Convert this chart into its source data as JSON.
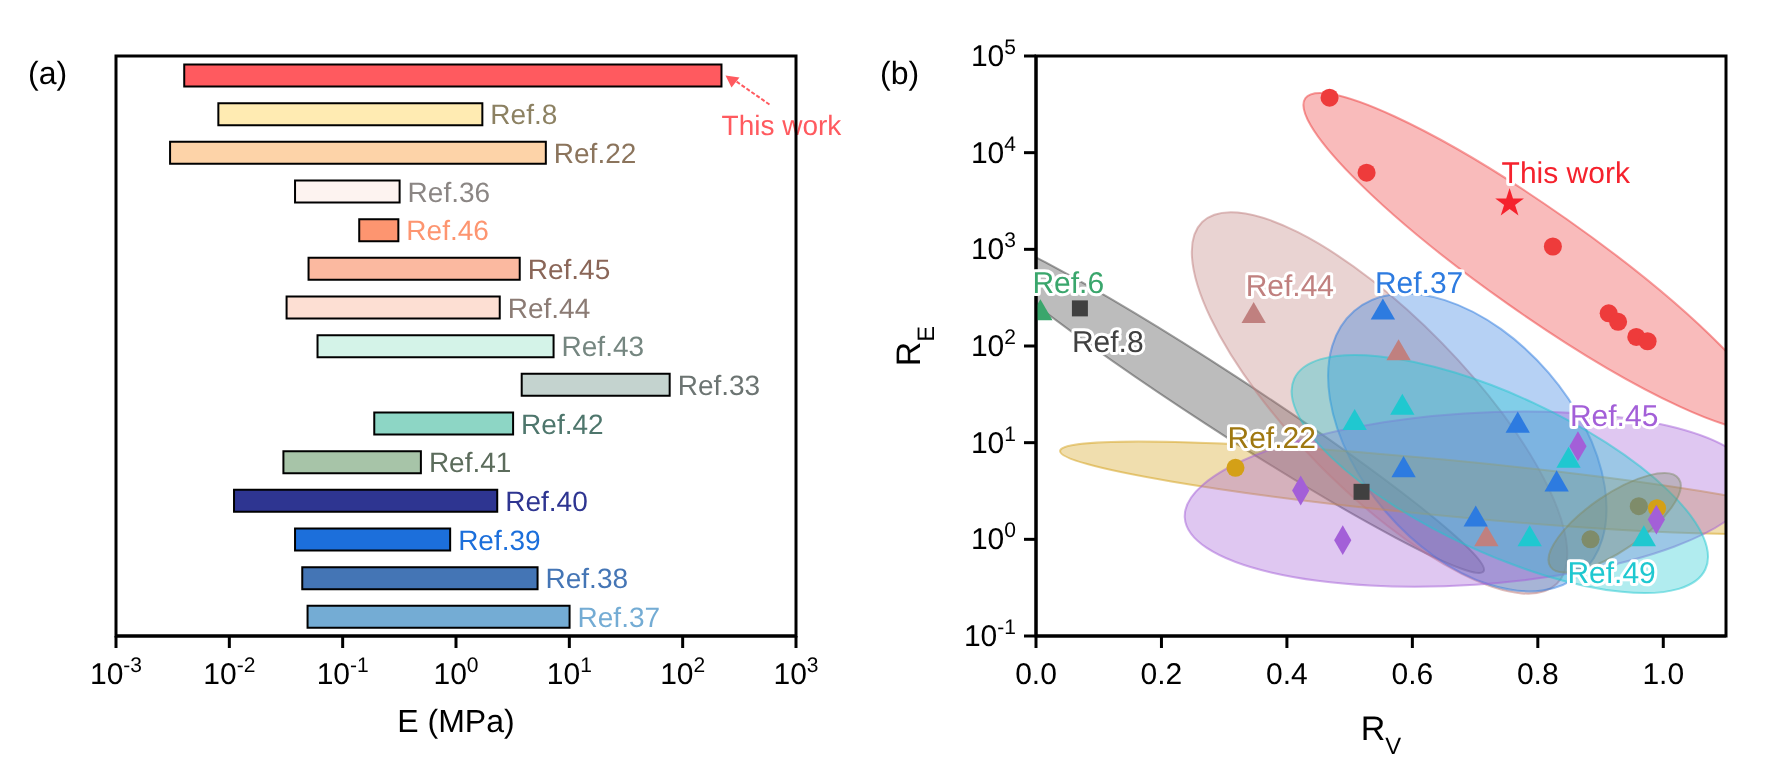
{
  "chart_data": [
    {
      "type": "bar",
      "title": "(a)",
      "orientation": "horizontal",
      "log": "x",
      "xlabel": "E (MPa)",
      "tick_labels": "x",
      "legend": false,
      "grid": false,
      "categories": [
        "This work",
        "Ref.8",
        "Ref.22",
        "Ref.36",
        "Ref.46",
        "Ref.45",
        "Ref.44",
        "Ref.43",
        "Ref.33",
        "Ref.42",
        "Ref.41",
        "Ref.40",
        "Ref.39",
        "Ref.38",
        "Ref.37"
      ],
      "base": [
        0.004,
        0.008,
        0.003,
        0.038,
        0.14,
        0.05,
        0.032,
        0.06,
        3.8,
        0.19,
        0.03,
        0.011,
        0.038,
        0.044,
        0.049
      ],
      "values": [
        220,
        1.7,
        6.2,
        0.28,
        0.17,
        3.6,
        2.4,
        7.2,
        73,
        3.0,
        0.46,
        2.3,
        0.85,
        5.2,
        10
      ],
      "colors": [
        "#ff5a5f",
        "#ffebb2",
        "#fdd3a8",
        "#fdf3f0",
        "#fd9570",
        "#fbb9a0",
        "#fddfd3",
        "#d4f3e8",
        "#c4d3cf",
        "#8dd6c5",
        "#a7c4a8",
        "#2e3591",
        "#1c6fdb",
        "#4475b5",
        "#74acd4"
      ],
      "xlim": [
        0.001,
        1000
      ],
      "xticks": [
        {
          "value": 0.001,
          "label": "10$^{-3}$"
        },
        {
          "value": 0.01,
          "label": "10$^{-2}$"
        },
        {
          "value": 0.1,
          "label": "10$^{-1}$"
        },
        {
          "value": 1,
          "label": "10$^{0}$"
        },
        {
          "value": 10,
          "label": "10$^{1}$"
        },
        {
          "value": 100,
          "label": "10$^{2}$"
        },
        {
          "value": 1000,
          "label": "10$^{3}$"
        }
      ]
    },
    {
      "type": "scatter",
      "title": "(b)",
      "log": true,
      "xlabel": "R$_{V}$",
      "ylabel": "R$_{E}$",
      "legend": false,
      "grid": false,
      "xlim": [
        0,
        1.1
      ],
      "xticks": [
        {
          "value": 0,
          "label": "0.0"
        },
        {
          "value": 0.2,
          "label": "0.2"
        },
        {
          "value": 0.4,
          "label": "0.4"
        },
        {
          "value": 0.6,
          "label": "0.6"
        },
        {
          "value": 0.8,
          "label": "0.8"
        },
        {
          "value": 1,
          "label": "1.0"
        }
      ],
      "ylim": [
        0.1,
        100000
      ],
      "yticks": [
        {
          "value": 0.1,
          "label": "10$^{-1}$"
        },
        {
          "value": 1,
          "label": "10$^{0}$"
        },
        {
          "value": 10,
          "label": "10$^{1}$"
        },
        {
          "value": 100,
          "label": "10$^{2}$"
        },
        {
          "value": 1000,
          "label": "10$^{3}$"
        },
        {
          "value": 10000,
          "label": "10$^{4}$"
        },
        {
          "value": 100000,
          "label": "10$^{5}$"
        }
      ],
      "series": [
        {
          "name": "This work",
          "color": "#f5222d",
          "marker": "star",
          "x": [
            0.755
          ],
          "values": [
            3000
          ]
        },
        {
          "color": "#ee3b3b",
          "marker": "circle",
          "x": [
            0.468,
            0.527,
            0.824,
            0.913,
            0.928,
            0.957,
            0.975
          ],
          "values": [
            37000,
            6200,
            1070,
            218,
            178,
            124,
            112
          ]
        },
        {
          "name": "Ref.6",
          "color": "#3aa66c",
          "marker": "triangle",
          "x": [
            0.007
          ],
          "values": [
            218
          ]
        },
        {
          "name": "Ref.8",
          "color": "#404040",
          "marker": "square",
          "x": [
            0.07,
            0.519
          ],
          "values": [
            245,
            3.1
          ]
        },
        {
          "name": "Ref.44",
          "color": "#c0807f",
          "marker": "triangle",
          "x": [
            0.347,
            0.578,
            0.718
          ],
          "values": [
            204,
            84,
            1.0
          ]
        },
        {
          "name": "Ref.37",
          "color": "#2d7be0",
          "marker": "triangle",
          "x": [
            0.553,
            0.586,
            0.701,
            0.83,
            0.768
          ],
          "values": [
            222,
            5.2,
            1.6,
            3.7,
            15
          ]
        },
        {
          "name": "Ref.22",
          "color": "#d4a017",
          "marker": "circle",
          "x": [
            0.318,
            0.99
          ],
          "values": [
            5.5,
            2.1
          ]
        },
        {
          "name": "Ref.45",
          "color": "#a35fd8",
          "marker": "diamond",
          "x": [
            0.864,
            0.422,
            0.489,
            0.989
          ],
          "values": [
            9.2,
            3.2,
            0.98,
            1.6
          ]
        },
        {
          "name": "Ref.49",
          "color": "#1fc8d0",
          "marker": "triangle",
          "x": [
            0.969,
            0.787,
            0.584,
            0.508,
            0.849
          ],
          "values": [
            1.0,
            1.0,
            23,
            16,
            6.5
          ]
        },
        {
          "color": "#7f8c6a",
          "marker": "circle",
          "x": [
            0.961,
            0.884
          ],
          "values": [
            2.2,
            1.0
          ]
        }
      ]
    }
  ]
}
